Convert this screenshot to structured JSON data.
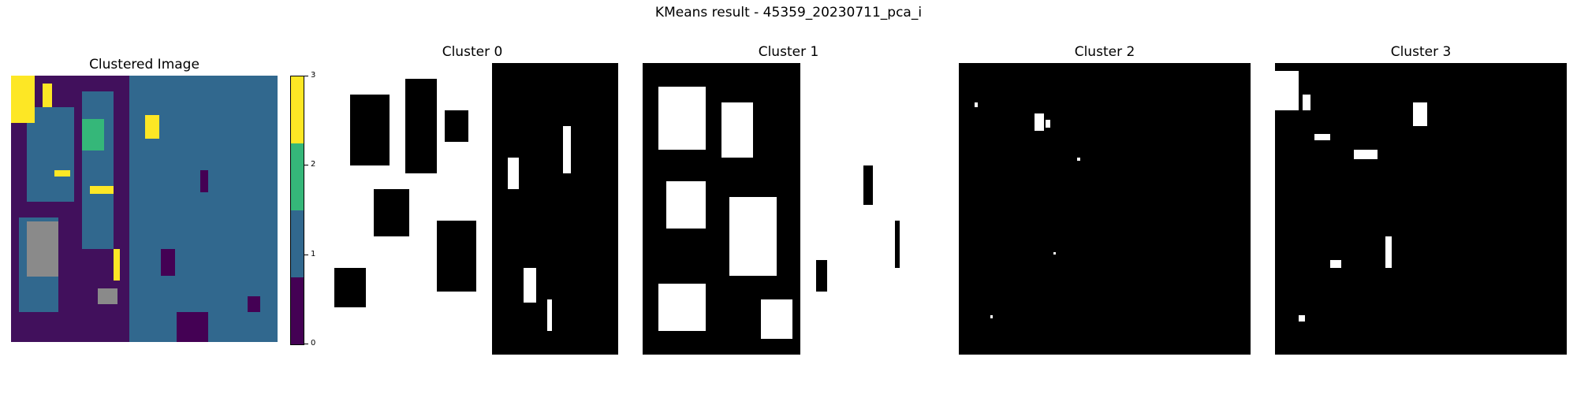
{
  "figure": {
    "title": "KMeans result - 45359_20230711_pca_i"
  },
  "clustered_panel": {
    "title": "Clustered Image"
  },
  "colorbar": {
    "ticks": [
      "0",
      "1",
      "2",
      "3"
    ],
    "colors": [
      "#440154",
      "#31688e",
      "#35b779",
      "#fde725"
    ]
  },
  "cluster_panels": [
    {
      "title": "Cluster 0"
    },
    {
      "title": "Cluster 1"
    },
    {
      "title": "Cluster 2"
    },
    {
      "title": "Cluster 3"
    }
  ],
  "colors": {
    "mask_on": "#ffffff",
    "mask_off": "#000000",
    "unlabeled": "#8a8a8a"
  }
}
